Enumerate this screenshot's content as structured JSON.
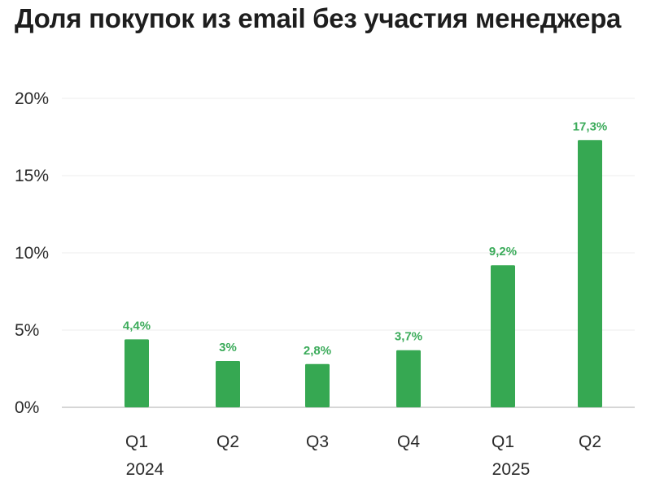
{
  "title": "Доля покупок из email без участия менеджера",
  "colors": {
    "bar": "#36a852",
    "data_label": "#3bab5a",
    "grid": "#ececec",
    "axis": "#c8c8c8",
    "text": "#2a2a2a"
  },
  "chart_data": {
    "type": "bar",
    "title": "Доля покупок из email без участия менеджера",
    "categories": [
      "Q1",
      "Q2",
      "Q3",
      "Q4",
      "Q1",
      "Q2"
    ],
    "groups": [
      {
        "label": "2024",
        "categories": [
          "Q1",
          "Q2",
          "Q3",
          "Q4"
        ]
      },
      {
        "label": "2025",
        "categories": [
          "Q1",
          "Q2"
        ]
      }
    ],
    "values": [
      4.4,
      3.0,
      2.8,
      3.7,
      9.2,
      17.3
    ],
    "data_labels": [
      "4,4%",
      "3%",
      "2,8%",
      "3,7%",
      "9,2%",
      "17,3%"
    ],
    "ylim": [
      0,
      20
    ],
    "y_ticks": [
      {
        "value": 0,
        "label": "0%"
      },
      {
        "value": 5,
        "label": "5%"
      },
      {
        "value": 10,
        "label": "10%"
      },
      {
        "value": 15,
        "label": "15%"
      },
      {
        "value": 20,
        "label": "20%"
      }
    ],
    "xlabel": "",
    "ylabel": "",
    "grid": true,
    "legend": "none"
  }
}
